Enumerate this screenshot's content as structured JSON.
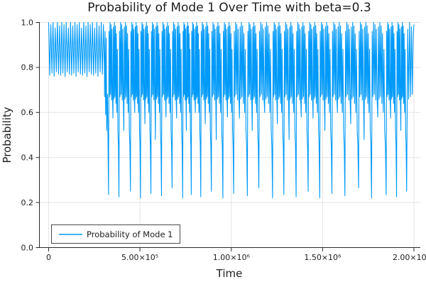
{
  "window": {
    "background": "#ffffff"
  },
  "chart_data": {
    "type": "line",
    "title": "Probability of Mode 1 Over Time with beta=0.3",
    "xlabel": "Time",
    "ylabel": "Probability",
    "xlim": [
      0,
      2000000
    ],
    "ylim": [
      0.0,
      1.0
    ],
    "grid": true,
    "legend_position": "bottom-left",
    "legend_entries": [
      "Probability of Mode 1"
    ],
    "line_color": "#009af9",
    "axis_color": "#2a2a2a",
    "grid_color": "#e4e4e4",
    "x_ticks": [
      {
        "value": 0,
        "label": "0"
      },
      {
        "value": 500000,
        "label": "5.00×10⁵"
      },
      {
        "value": 1000000,
        "label": "1.00×10⁶"
      },
      {
        "value": 1500000,
        "label": "1.50×10⁶"
      },
      {
        "value": 2000000,
        "label": "2.00×10⁶"
      }
    ],
    "y_ticks": [
      {
        "value": 0.0,
        "label": "0.0"
      },
      {
        "value": 0.2,
        "label": "0.2"
      },
      {
        "value": 0.4,
        "label": "0.4"
      },
      {
        "value": 0.6,
        "label": "0.6"
      },
      {
        "value": 0.8,
        "label": "0.8"
      },
      {
        "value": 1.0,
        "label": "1.0"
      }
    ],
    "t_unit": 1000,
    "series_spec": {
      "comment_phase1": "dense oscillation band between ~0.765 and 1.0 from t=0 to ~3.05e5",
      "phase1": {
        "t_start": 0,
        "t_end": 304,
        "half_period": 6,
        "high_var": [
          1.0,
          0.99,
          1.0,
          0.975,
          1.0,
          0.985
        ],
        "low_var": [
          0.765,
          0.775,
          0.76,
          0.78,
          0.77
        ]
      },
      "transition_points": [
        [
          306,
          0.67
        ],
        [
          309,
          0.96
        ],
        [
          312,
          0.59
        ],
        [
          315,
          0.93
        ],
        [
          318,
          0.52
        ],
        [
          322,
          0.68
        ],
        [
          325,
          0.47
        ]
      ],
      "deep_dips": {
        "times": [
          328,
          385,
          448,
          503,
          560,
          618,
          676,
          734,
          781,
          833,
          891,
          954,
          1013,
          1088,
          1151,
          1226,
          1288,
          1355,
          1421,
          1484,
          1551,
          1622,
          1697,
          1768,
          1848,
          1905,
          1960
        ],
        "values_cycle": [
          0.235,
          0.225,
          0.25,
          0.22,
          0.24,
          0.23,
          0.265,
          0.22
        ],
        "medium_dip_cycle": [
          0.575,
          0.52,
          0.6,
          0.55,
          0.48,
          0.58
        ]
      },
      "cluster_template": {
        "points": [
          [
            0.045,
            0.96
          ],
          [
            0.09,
            0.67
          ],
          [
            0.14,
            1.0
          ],
          [
            0.19,
            0.68
          ],
          [
            0.235,
            0.99
          ],
          [
            0.285,
            0.655
          ],
          [
            0.33,
            0.97
          ],
          [
            0.38,
            0.66
          ],
          [
            0.425,
            0.575
          ],
          [
            0.47,
            0.98
          ],
          [
            0.52,
            0.66
          ],
          [
            0.565,
            1.0
          ],
          [
            0.61,
            0.67
          ],
          [
            0.66,
            0.985
          ],
          [
            0.705,
            0.64
          ],
          [
            0.75,
            0.95
          ],
          [
            0.8,
            0.6
          ],
          [
            0.85,
            0.88
          ],
          [
            0.9,
            0.52
          ],
          [
            0.95,
            0.45
          ]
        ],
        "medium_index": 8
      },
      "tail_points": [
        [
          1966,
          0.97
        ],
        [
          1971,
          0.66
        ],
        [
          1976,
          1.0
        ],
        [
          1981,
          0.67
        ],
        [
          1986,
          0.98
        ],
        [
          1991,
          0.68
        ],
        [
          1996,
          0.95
        ],
        [
          2000,
          0.99
        ]
      ]
    }
  }
}
